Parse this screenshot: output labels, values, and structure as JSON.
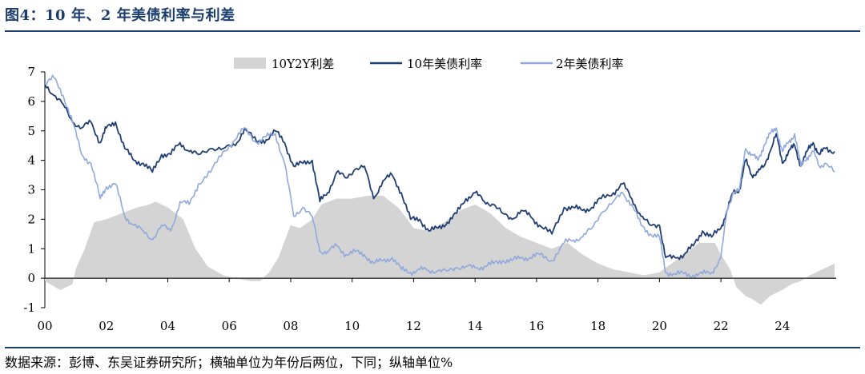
{
  "header": {
    "title": "图4：10 年、2 年美债利率与利差"
  },
  "footer": {
    "source": "数据来源：彭博、东吴证券研究所；横轴单位为年份后两位，下同；纵轴单位%"
  },
  "colors": {
    "spread": "#d4d4d4",
    "ten_year": "#1f3f73",
    "two_year": "#8fa9dc",
    "rule": "#1b3d6e"
  },
  "chart_data": {
    "type": "line",
    "ylim": [
      -1,
      7
    ],
    "xlim": [
      2000,
      2025.75
    ],
    "y_ticks": [
      "-1",
      "0",
      "1",
      "2",
      "3",
      "4",
      "5",
      "6",
      "7"
    ],
    "x_ticks": [
      "00",
      "02",
      "04",
      "06",
      "08",
      "10",
      "12",
      "14",
      "16",
      "18",
      "20",
      "22",
      "24"
    ],
    "legend_position": "top",
    "series": [
      {
        "name": "10Y2Y利差",
        "type": "area",
        "x": [
          2000.0,
          2000.5,
          2000.9,
          2001.0,
          2001.3,
          2001.6,
          2002.0,
          2002.5,
          2003.0,
          2003.4,
          2003.6,
          2004.0,
          2004.5,
          2004.9,
          2005.3,
          2005.8,
          2006.2,
          2006.7,
          2007.0,
          2007.3,
          2007.6,
          2008.0,
          2008.3,
          2008.7,
          2009.0,
          2009.5,
          2010.0,
          2010.5,
          2011.0,
          2011.5,
          2011.8,
          2012.0,
          2012.5,
          2013.0,
          2013.5,
          2014.0,
          2014.5,
          2015.0,
          2015.5,
          2016.0,
          2016.5,
          2017.0,
          2017.5,
          2018.0,
          2018.5,
          2019.0,
          2019.5,
          2020.0,
          2020.4,
          2020.8,
          2021.3,
          2021.8,
          2022.0,
          2022.3,
          2022.5,
          2022.8,
          2023.0,
          2023.3,
          2023.6,
          2024.0,
          2024.3,
          2024.6,
          2024.9,
          2025.3,
          2025.7
        ],
        "values": [
          -0.1,
          -0.4,
          -0.2,
          0.3,
          1.0,
          1.9,
          2.0,
          2.2,
          2.4,
          2.5,
          2.6,
          2.4,
          2.0,
          1.0,
          0.4,
          0.1,
          0.0,
          -0.1,
          -0.1,
          0.2,
          0.7,
          1.8,
          1.7,
          2.0,
          2.5,
          2.7,
          2.7,
          2.8,
          2.8,
          2.4,
          2.0,
          1.7,
          1.6,
          1.9,
          2.3,
          2.5,
          2.2,
          1.7,
          1.4,
          1.2,
          1.0,
          1.2,
          0.8,
          0.5,
          0.3,
          0.2,
          0.1,
          0.2,
          0.5,
          0.8,
          1.2,
          1.2,
          0.8,
          0.3,
          -0.3,
          -0.6,
          -0.7,
          -0.9,
          -0.6,
          -0.4,
          -0.2,
          -0.1,
          0.1,
          0.3,
          0.5
        ]
      },
      {
        "name": "10年美债利率",
        "type": "line",
        "x": [
          2000.0,
          2000.3,
          2000.6,
          2000.9,
          2001.2,
          2001.5,
          2001.8,
          2002.0,
          2002.3,
          2002.6,
          2002.9,
          2003.2,
          2003.5,
          2003.8,
          2004.1,
          2004.4,
          2004.7,
          2005.0,
          2005.4,
          2005.8,
          2006.2,
          2006.5,
          2006.9,
          2007.2,
          2007.5,
          2007.8,
          2008.1,
          2008.4,
          2008.7,
          2008.95,
          2009.2,
          2009.5,
          2009.8,
          2010.1,
          2010.4,
          2010.7,
          2011.0,
          2011.3,
          2011.6,
          2011.9,
          2012.2,
          2012.5,
          2012.8,
          2013.1,
          2013.4,
          2013.7,
          2014.0,
          2014.3,
          2014.6,
          2014.9,
          2015.2,
          2015.5,
          2015.8,
          2016.1,
          2016.5,
          2016.9,
          2017.2,
          2017.5,
          2017.8,
          2018.1,
          2018.5,
          2018.8,
          2019.1,
          2019.4,
          2019.7,
          2020.0,
          2020.2,
          2020.5,
          2020.8,
          2021.1,
          2021.4,
          2021.7,
          2022.0,
          2022.2,
          2022.4,
          2022.6,
          2022.8,
          2023.0,
          2023.2,
          2023.4,
          2023.6,
          2023.8,
          2024.0,
          2024.2,
          2024.4,
          2024.6,
          2024.8,
          2025.0,
          2025.2,
          2025.4,
          2025.7
        ],
        "values": [
          6.6,
          6.2,
          5.9,
          5.3,
          5.1,
          5.3,
          4.6,
          5.1,
          5.3,
          4.4,
          4.0,
          3.9,
          3.6,
          4.2,
          4.2,
          4.6,
          4.3,
          4.2,
          4.4,
          4.4,
          4.5,
          5.1,
          4.6,
          4.7,
          5.0,
          4.6,
          3.8,
          3.9,
          4.0,
          2.6,
          2.9,
          3.6,
          3.4,
          3.7,
          3.8,
          2.7,
          3.3,
          3.5,
          2.9,
          2.0,
          2.0,
          1.6,
          1.7,
          1.9,
          2.2,
          2.7,
          2.9,
          2.6,
          2.5,
          2.2,
          2.0,
          2.3,
          2.1,
          1.8,
          1.5,
          2.4,
          2.4,
          2.3,
          2.4,
          2.7,
          2.9,
          3.2,
          2.7,
          2.1,
          1.8,
          1.8,
          0.7,
          0.7,
          0.8,
          1.1,
          1.6,
          1.4,
          1.7,
          2.3,
          2.9,
          3.0,
          4.0,
          3.5,
          3.6,
          3.8,
          4.3,
          4.9,
          3.9,
          4.3,
          4.5,
          3.8,
          4.3,
          4.6,
          4.2,
          4.4,
          4.3
        ]
      },
      {
        "name": "2年美债利率",
        "type": "line",
        "x": [
          2000.0,
          2000.3,
          2000.6,
          2000.9,
          2001.2,
          2001.5,
          2001.8,
          2002.0,
          2002.3,
          2002.6,
          2002.9,
          2003.2,
          2003.5,
          2003.8,
          2004.1,
          2004.4,
          2004.7,
          2005.0,
          2005.4,
          2005.8,
          2006.2,
          2006.5,
          2006.9,
          2007.2,
          2007.5,
          2007.8,
          2008.1,
          2008.4,
          2008.7,
          2008.95,
          2009.2,
          2009.5,
          2009.8,
          2010.1,
          2010.4,
          2010.7,
          2011.0,
          2011.3,
          2011.6,
          2011.9,
          2012.2,
          2012.5,
          2012.8,
          2013.1,
          2013.4,
          2013.7,
          2014.0,
          2014.3,
          2014.6,
          2014.9,
          2015.2,
          2015.5,
          2015.8,
          2016.1,
          2016.5,
          2016.9,
          2017.2,
          2017.5,
          2017.8,
          2018.1,
          2018.5,
          2018.8,
          2019.1,
          2019.4,
          2019.7,
          2020.0,
          2020.2,
          2020.5,
          2020.8,
          2021.1,
          2021.4,
          2021.7,
          2022.0,
          2022.2,
          2022.4,
          2022.6,
          2022.8,
          2023.0,
          2023.2,
          2023.4,
          2023.6,
          2023.8,
          2024.0,
          2024.2,
          2024.4,
          2024.6,
          2024.8,
          2025.0,
          2025.2,
          2025.4,
          2025.7
        ],
        "values": [
          6.6,
          6.8,
          6.2,
          5.3,
          4.2,
          3.9,
          2.7,
          3.1,
          3.2,
          2.1,
          1.8,
          1.6,
          1.3,
          1.8,
          1.6,
          2.6,
          2.5,
          3.2,
          3.6,
          4.3,
          4.7,
          5.1,
          4.6,
          4.8,
          4.9,
          3.9,
          2.1,
          2.4,
          2.1,
          0.9,
          0.9,
          1.1,
          0.8,
          0.9,
          0.8,
          0.5,
          0.6,
          0.7,
          0.3,
          0.2,
          0.3,
          0.25,
          0.25,
          0.25,
          0.35,
          0.4,
          0.35,
          0.4,
          0.5,
          0.6,
          0.6,
          0.7,
          0.7,
          0.8,
          0.6,
          1.2,
          1.3,
          1.4,
          1.7,
          2.2,
          2.6,
          2.9,
          2.5,
          1.8,
          1.5,
          1.4,
          0.2,
          0.15,
          0.15,
          0.1,
          0.15,
          0.2,
          0.7,
          2.3,
          2.9,
          3.0,
          4.4,
          4.2,
          4.0,
          4.5,
          4.9,
          5.1,
          4.3,
          4.6,
          4.9,
          3.8,
          4.1,
          4.3,
          3.8,
          3.9,
          3.6
        ]
      }
    ]
  }
}
